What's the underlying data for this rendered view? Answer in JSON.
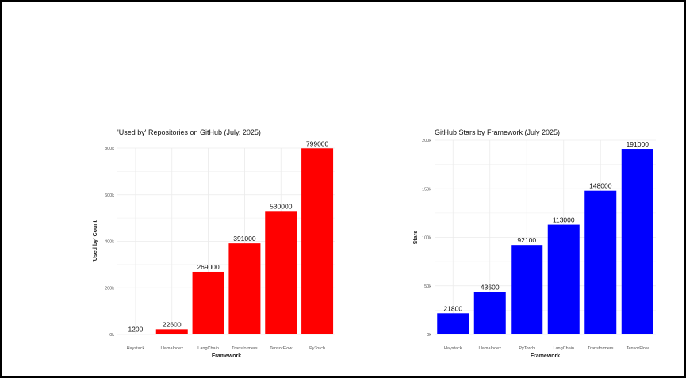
{
  "chart_data": [
    {
      "type": "bar",
      "title": "'Used by' Repositories on GitHub (July, 2025)",
      "xlabel": "Framework",
      "ylabel": "'Used by' Count",
      "categories": [
        "Haystack",
        "LlamaIndex",
        "LangChain",
        "Transformers",
        "TensorFlow",
        "PyTorch"
      ],
      "values": [
        1200,
        22600,
        269000,
        391000,
        530000,
        799000
      ],
      "ylim": [
        0,
        800000
      ],
      "yticks": [
        0,
        200000,
        400000,
        600000,
        800000
      ],
      "ytick_labels": [
        "0k",
        "200k",
        "400k",
        "600k",
        "800k"
      ],
      "color": "#ff0000",
      "grid": true
    },
    {
      "type": "bar",
      "title": "GitHub Stars by Framework (July 2025)",
      "xlabel": "Framework",
      "ylabel": "Stars",
      "categories": [
        "Haystack",
        "LlamaIndex",
        "PyTorch",
        "LangChain",
        "Transformers",
        "TensorFlow"
      ],
      "values": [
        21800,
        43600,
        92100,
        113000,
        148000,
        191000
      ],
      "ylim": [
        0,
        200000
      ],
      "yticks": [
        0,
        50000,
        100000,
        150000,
        200000
      ],
      "ytick_labels": [
        "0k",
        "50k",
        "100k",
        "150k",
        "200k"
      ],
      "color": "#0000ff",
      "grid": true
    }
  ]
}
